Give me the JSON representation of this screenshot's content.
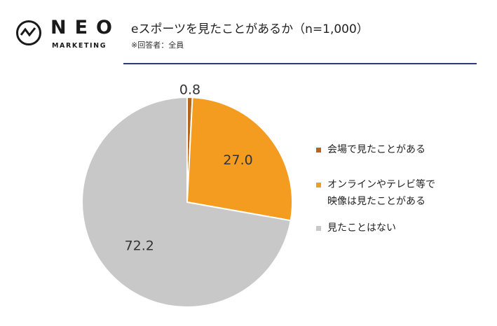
{
  "brand": {
    "name": "NEO",
    "sub": "MARKETING"
  },
  "header": {
    "title": "eスポーツを見たことがあるか（n=1,000）",
    "note": "※回答者：全員"
  },
  "colors": {
    "accent_rule": "#2b3a7a"
  },
  "chart_data": {
    "type": "pie",
    "title": "eスポーツを見たことがあるか（n=1,000）",
    "slices": [
      {
        "name": "会場で見たことがある",
        "value": 0.8,
        "label": "0.8",
        "color": "#b5651d"
      },
      {
        "name": "オンラインやテレビ等で映像は見たことがある",
        "value": 27.0,
        "label": "27.0",
        "color": "#f39c1f"
      },
      {
        "name": "見たことはない",
        "value": 72.2,
        "label": "72.2",
        "color": "#c8c8c8"
      }
    ],
    "legend_position": "right"
  },
  "legend": {
    "items": [
      {
        "lines": [
          "会場で見たことがある"
        ],
        "color": "#b5651d"
      },
      {
        "lines": [
          "オンラインやテレビ等で",
          "映像は見たことがある"
        ],
        "color": "#f39c1f"
      },
      {
        "lines": [
          "見たことはない"
        ],
        "color": "#c8c8c8"
      }
    ]
  }
}
